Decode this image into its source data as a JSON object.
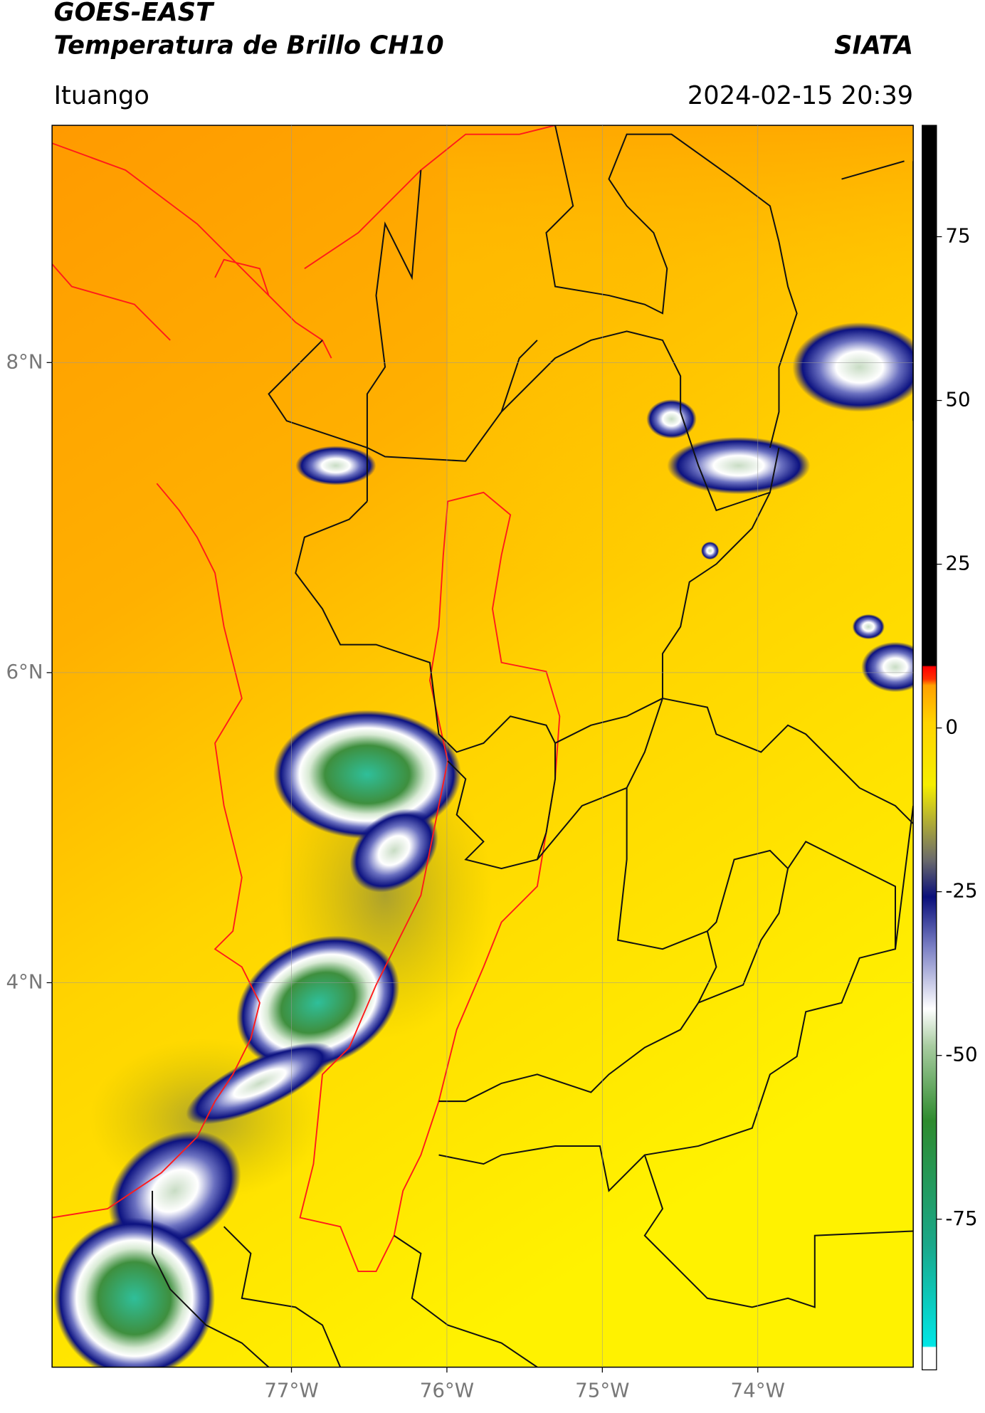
{
  "header": {
    "title": "GOES-EAST",
    "subtitle": "Temperatura de Brillo CH10",
    "source": "SIATA",
    "location": "Ituango",
    "datetime": "2024-02-15 20:39"
  },
  "map": {
    "xlim": [
      -78.54,
      -73.0
    ],
    "ylim": [
      1.52,
      9.53
    ],
    "xticks": [
      {
        "value": -77,
        "label": "77°W"
      },
      {
        "value": -76,
        "label": "76°W"
      },
      {
        "value": -75,
        "label": "75°W"
      },
      {
        "value": -74,
        "label": "74°W"
      }
    ],
    "yticks": [
      {
        "value": 8,
        "label": "8°N"
      },
      {
        "value": 6,
        "label": "6°N"
      },
      {
        "value": 4,
        "label": "4°N"
      }
    ],
    "grid": true
  },
  "colorbar": {
    "clim": [
      -98,
      92
    ],
    "ticks": [
      75,
      50,
      25,
      0,
      -25,
      -50,
      -75
    ]
  }
}
